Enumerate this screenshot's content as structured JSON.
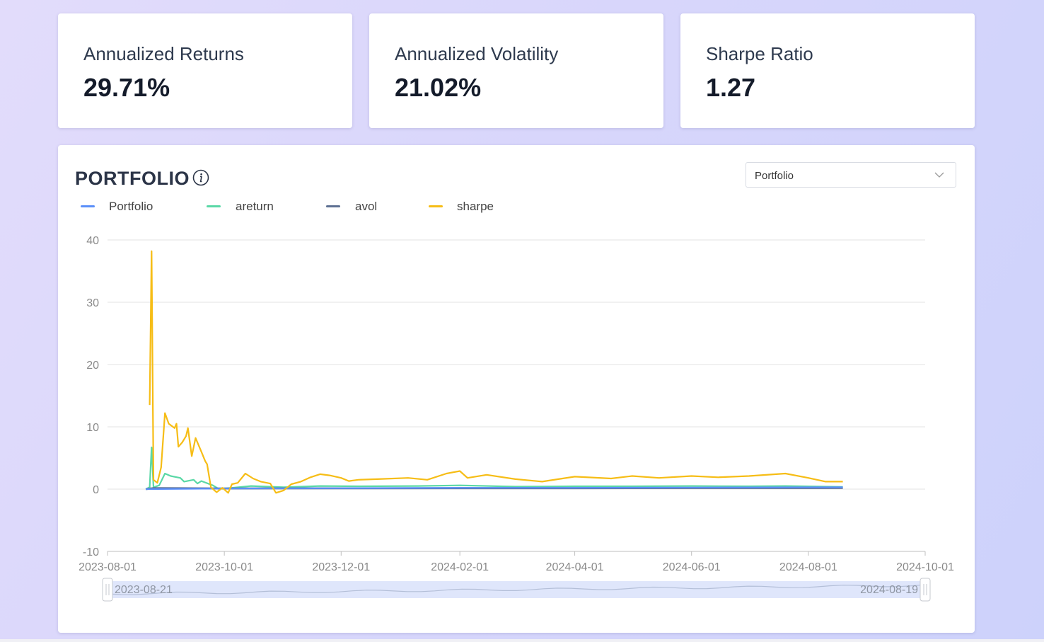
{
  "metrics": [
    {
      "title": "Annualized Returns",
      "value": "29.71%"
    },
    {
      "title": "Annualized Volatility",
      "value": "21.02%"
    },
    {
      "title": "Sharpe Ratio",
      "value": "1.27"
    }
  ],
  "chart_card": {
    "title": "PORTFOLIO",
    "select_value": "Portfolio",
    "info_icon": "info-icon"
  },
  "colors": {
    "Portfolio": "#5b8ff9",
    "areturn": "#5ad8a6",
    "avol": "#5d7092",
    "sharpe": "#f6bd16"
  },
  "chart_data": {
    "type": "line",
    "title": "",
    "xlabel": "",
    "ylabel": "",
    "ylim": [
      -10,
      40
    ],
    "yticks": [
      "-10",
      "0",
      "10",
      "20",
      "30",
      "40"
    ],
    "xlim": [
      "2023-08-01",
      "2024-10-01"
    ],
    "xticks": [
      "2023-08-01",
      "2023-10-01",
      "2023-12-01",
      "2024-02-01",
      "2024-04-01",
      "2024-06-01",
      "2024-08-01",
      "2024-10-01"
    ],
    "legend_position": "top-left",
    "grid": true,
    "slider": {
      "start": "2023-08-21",
      "end": "2024-08-19"
    },
    "series": [
      {
        "name": "Portfolio",
        "points": [
          [
            "2023-08-21",
            0.0
          ],
          [
            "2023-10-01",
            0.1
          ],
          [
            "2023-12-01",
            0.15
          ],
          [
            "2024-02-01",
            0.2
          ],
          [
            "2024-04-01",
            0.2
          ],
          [
            "2024-06-01",
            0.25
          ],
          [
            "2024-08-19",
            0.3
          ]
        ]
      },
      {
        "name": "areturn",
        "points": [
          [
            "2023-08-21",
            0.0
          ],
          [
            "2023-08-23",
            0.3
          ],
          [
            "2023-08-24",
            6.7
          ],
          [
            "2023-08-25",
            0.3
          ],
          [
            "2023-08-28",
            0.6
          ],
          [
            "2023-08-31",
            2.5
          ],
          [
            "2023-09-03",
            2.1
          ],
          [
            "2023-09-08",
            1.8
          ],
          [
            "2023-09-10",
            1.2
          ],
          [
            "2023-09-15",
            1.5
          ],
          [
            "2023-09-17",
            0.9
          ],
          [
            "2023-09-19",
            1.3
          ],
          [
            "2023-09-25",
            0.6
          ],
          [
            "2023-09-28",
            0.05
          ],
          [
            "2023-10-05",
            0.2
          ],
          [
            "2023-10-15",
            0.5
          ],
          [
            "2023-11-01",
            0.3
          ],
          [
            "2023-11-20",
            0.5
          ],
          [
            "2023-12-10",
            0.45
          ],
          [
            "2024-01-10",
            0.5
          ],
          [
            "2024-02-01",
            0.6
          ],
          [
            "2024-03-01",
            0.4
          ],
          [
            "2024-04-01",
            0.45
          ],
          [
            "2024-05-01",
            0.45
          ],
          [
            "2024-06-01",
            0.5
          ],
          [
            "2024-07-01",
            0.45
          ],
          [
            "2024-07-20",
            0.5
          ],
          [
            "2024-08-19",
            0.35
          ]
        ]
      },
      {
        "name": "avol",
        "points": [
          [
            "2023-08-21",
            0.0
          ],
          [
            "2023-08-25",
            0.15
          ],
          [
            "2023-09-15",
            0.12
          ],
          [
            "2023-10-01",
            0.1
          ],
          [
            "2023-12-01",
            0.12
          ],
          [
            "2024-02-01",
            0.15
          ],
          [
            "2024-04-01",
            0.15
          ],
          [
            "2024-06-01",
            0.17
          ],
          [
            "2024-08-19",
            0.18
          ]
        ]
      },
      {
        "name": "sharpe",
        "points": [
          [
            "2023-08-23",
            13.5
          ],
          [
            "2023-08-24",
            38.2
          ],
          [
            "2023-08-25",
            1.5
          ],
          [
            "2023-08-27",
            1.0
          ],
          [
            "2023-08-29",
            3.5
          ],
          [
            "2023-08-31",
            12.2
          ],
          [
            "2023-09-02",
            10.5
          ],
          [
            "2023-09-05",
            9.8
          ],
          [
            "2023-09-06",
            10.5
          ],
          [
            "2023-09-07",
            6.8
          ],
          [
            "2023-09-09",
            7.5
          ],
          [
            "2023-09-11",
            8.5
          ],
          [
            "2023-09-12",
            9.8
          ],
          [
            "2023-09-14",
            5.3
          ],
          [
            "2023-09-16",
            8.2
          ],
          [
            "2023-09-19",
            6.0
          ],
          [
            "2023-09-21",
            4.5
          ],
          [
            "2023-09-22",
            4.0
          ],
          [
            "2023-09-24",
            0.3
          ],
          [
            "2023-09-27",
            -0.5
          ],
          [
            "2023-09-30",
            0.2
          ],
          [
            "2023-10-03",
            -0.6
          ],
          [
            "2023-10-05",
            0.8
          ],
          [
            "2023-10-08",
            1.0
          ],
          [
            "2023-10-12",
            2.5
          ],
          [
            "2023-10-16",
            1.7
          ],
          [
            "2023-10-20",
            1.2
          ],
          [
            "2023-10-25",
            0.9
          ],
          [
            "2023-10-28",
            -0.6
          ],
          [
            "2023-11-01",
            -0.2
          ],
          [
            "2023-11-05",
            0.8
          ],
          [
            "2023-11-10",
            1.2
          ],
          [
            "2023-11-15",
            1.9
          ],
          [
            "2023-11-20",
            2.4
          ],
          [
            "2023-11-25",
            2.2
          ],
          [
            "2023-12-01",
            1.8
          ],
          [
            "2023-12-05",
            1.3
          ],
          [
            "2023-12-10",
            1.5
          ],
          [
            "2023-12-20",
            1.6
          ],
          [
            "2024-01-05",
            1.8
          ],
          [
            "2024-01-15",
            1.5
          ],
          [
            "2024-01-25",
            2.5
          ],
          [
            "2024-02-01",
            2.9
          ],
          [
            "2024-02-05",
            1.8
          ],
          [
            "2024-02-15",
            2.3
          ],
          [
            "2024-03-01",
            1.6
          ],
          [
            "2024-03-15",
            1.2
          ],
          [
            "2024-04-01",
            2.0
          ],
          [
            "2024-04-20",
            1.7
          ],
          [
            "2024-05-01",
            2.1
          ],
          [
            "2024-05-15",
            1.8
          ],
          [
            "2024-06-01",
            2.1
          ],
          [
            "2024-06-15",
            1.9
          ],
          [
            "2024-07-01",
            2.1
          ],
          [
            "2024-07-20",
            2.5
          ],
          [
            "2024-08-01",
            1.8
          ],
          [
            "2024-08-10",
            1.2
          ],
          [
            "2024-08-19",
            1.2
          ]
        ]
      }
    ]
  }
}
